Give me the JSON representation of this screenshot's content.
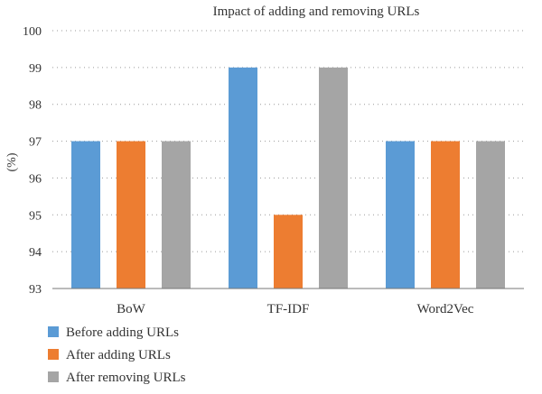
{
  "chart_data": {
    "type": "bar",
    "title": "Impact of adding and removing URLs",
    "xlabel": "",
    "ylabel": "(%)",
    "categories": [
      "BoW",
      "TF-IDF",
      "Word2Vec"
    ],
    "series": [
      {
        "name": "Before adding URLs",
        "color": "#5b9bd5",
        "values": [
          97,
          99,
          97
        ]
      },
      {
        "name": "After adding URLs",
        "color": "#ed7d31",
        "values": [
          97,
          95,
          97
        ]
      },
      {
        "name": "After removing URLs",
        "color": "#a5a5a5",
        "values": [
          97,
          99,
          97
        ]
      }
    ],
    "ylim": [
      93,
      100
    ],
    "yticks": [
      93,
      94,
      95,
      96,
      97,
      98,
      99,
      100
    ],
    "grid": true,
    "legend_position": "bottom-left"
  }
}
